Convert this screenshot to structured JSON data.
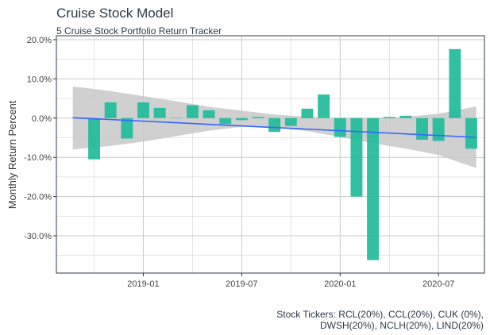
{
  "chart_data": {
    "type": "bar",
    "title": "Cruise Stock Model",
    "subtitle": "5 Cruise Stock Portfolio Return Tracker",
    "ylabel": "Monthly Return Percent",
    "xlabel": "",
    "caption_line1": "Stock Tickers: RCL(20%), CCL(20%), CUK (0%),",
    "caption_line2": "DWSH(20%), NCLH(20%), LIND(20%)",
    "x_start": "2018-09",
    "ylim": [
      -39.5,
      21
    ],
    "yticks": [
      20,
      10,
      0,
      -10,
      -20,
      -30
    ],
    "ytick_labels": [
      "20.0%",
      "10.0%",
      "0.0%",
      "-10.0%",
      "-20.0%",
      "-30.0%"
    ],
    "xlim_month_index": [
      -1.3,
      24.8
    ],
    "xticks_month_index": [
      4,
      10,
      16,
      22
    ],
    "xtick_labels": [
      "2019-01",
      "2019-07",
      "2020-01",
      "2020-07"
    ],
    "categories": [
      "2018-09",
      "2018-10",
      "2018-11",
      "2018-12",
      "2019-01",
      "2019-02",
      "2019-03",
      "2019-04",
      "2019-05",
      "2019-06",
      "2019-07",
      "2019-08",
      "2019-09",
      "2019-10",
      "2019-11",
      "2019-12",
      "2020-01",
      "2020-02",
      "2020-03",
      "2020-04",
      "2020-05",
      "2020-06",
      "2020-07",
      "2020-08",
      "2020-09",
      "2020-10"
    ],
    "values": [
      0.1,
      -10.5,
      4.0,
      -5.2,
      4.0,
      2.6,
      0.1,
      3.3,
      2.0,
      -1.5,
      -0.5,
      0.3,
      -3.5,
      -2.0,
      2.4,
      6.0,
      -4.8,
      -20.0,
      -36.2,
      0.3,
      0.6,
      -5.5,
      -5.8,
      17.6,
      -7.8,
      0.0
    ],
    "trend": {
      "start_index": -0.3,
      "end_index": 24.3,
      "start_value": 0.1,
      "end_value": -4.9
    },
    "confidence_band": {
      "index": [
        -0.3,
        0.5,
        2,
        4,
        6,
        8,
        10,
        12,
        14,
        16,
        18,
        20,
        22,
        23.5,
        24.3
      ],
      "upper": [
        8.0,
        7.7,
        6.9,
        5.6,
        4.3,
        2.9,
        1.9,
        0.9,
        0.3,
        -0.1,
        0.0,
        0.3,
        1.1,
        2.3,
        3.0
      ],
      "lower": [
        -8.0,
        -7.7,
        -7.1,
        -6.0,
        -4.6,
        -3.2,
        -2.2,
        -2.4,
        -3.3,
        -4.8,
        -6.4,
        -7.8,
        -9.4,
        -11.6,
        -12.7
      ]
    },
    "colors": {
      "bar": "#1fbb9a",
      "trend": "#3366ff",
      "band": "#c8c8c8",
      "grid": "#c9c9c9",
      "axis": "#2b3a4a"
    }
  }
}
